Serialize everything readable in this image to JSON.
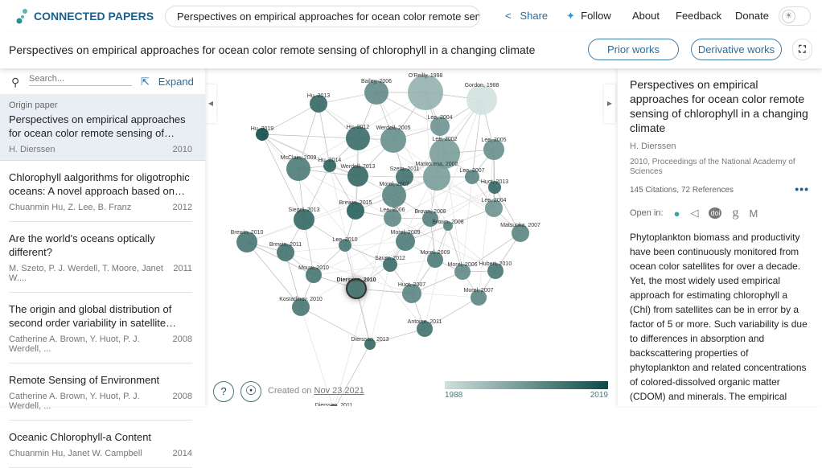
{
  "header": {
    "logo": "CONNECTED PAPERS",
    "search_value": "Perspectives on empirical approaches for ocean color remote sensing of chlorophyll in a changing climate",
    "share": "Share",
    "follow": "Follow",
    "about": "About",
    "feedback": "Feedback",
    "donate": "Donate"
  },
  "titlebar": {
    "title": "Perspectives on empirical approaches for ocean color remote sensing of chlorophyll in a changing climate",
    "prior": "Prior works",
    "derivative": "Derivative works"
  },
  "list": {
    "search_placeholder": "Search...",
    "expand": "Expand",
    "origin_label": "Origin paper",
    "origin": {
      "title": "Perspectives on empirical approaches for ocean color remote sensing of chlorophyll in a changing climate",
      "authors": "H. Dierssen",
      "year": "2010"
    },
    "items": [
      {
        "title": "Chlorophyll aalgorithms for oligotrophic oceans: A novel approach based on three-band reflectance difference",
        "authors": "Chuanmin Hu, Z. Lee, B. Franz",
        "year": "2012"
      },
      {
        "title": "Are the world's oceans optically different?",
        "authors": "M. Szeto, P. J. Werdell, T. Moore, Janet W....",
        "year": "2011"
      },
      {
        "title": "The origin and global distribution of second order variability in satellite ocean color",
        "authors": "Catherine A. Brown, Y. Huot, P. J. Werdell, ...",
        "year": "2008"
      },
      {
        "title": "Remote Sensing of Environment",
        "authors": "Catherine A. Brown, Y. Huot, P. J. Werdell, ...",
        "year": "2008"
      },
      {
        "title": "Oceanic Chlorophyll-a Content",
        "authors": "Chuanmin Hu, Janet W. Campbell",
        "year": "2014"
      }
    ]
  },
  "graph": {
    "created_prefix": "Created on",
    "created_date": "Nov 23 2021",
    "legend_min": "1988",
    "legend_max": "2019",
    "color_min": "#d2e2df",
    "color_max": "#0e4a47",
    "nodes": [
      {
        "label": "Bailey, 2006",
        "year": 2006
      },
      {
        "label": "O'Reilly, 1998",
        "year": 1998
      },
      {
        "label": "Gordon, 1988",
        "year": 1988
      },
      {
        "label": "Hu, 2013",
        "year": 2013
      },
      {
        "label": "Lee, 2004",
        "year": 2004
      },
      {
        "label": "Hu, 2019",
        "year": 2019
      },
      {
        "label": "Hu, 2012",
        "year": 2012
      },
      {
        "label": "Werdell, 2005",
        "year": 2005
      },
      {
        "label": "Lee, 2002",
        "year": 2002
      },
      {
        "label": "Lee, 2005",
        "year": 2005
      },
      {
        "label": "McClain, 2009",
        "year": 2009
      },
      {
        "label": "Hu, 2014",
        "year": 2014
      },
      {
        "label": "Werdell, 2013",
        "year": 2013
      },
      {
        "label": "Szeto, 2011",
        "year": 2011
      },
      {
        "label": "Maritorena, 2002",
        "year": 2002
      },
      {
        "label": "Lee, 2007",
        "year": 2007
      },
      {
        "label": "Huot, 2013",
        "year": 2013
      },
      {
        "label": "Morel, 2007",
        "year": 2007
      },
      {
        "label": "Brewin, 2015",
        "year": 2015
      },
      {
        "label": "Lee, 2004",
        "year": 2004
      },
      {
        "label": "Siegel, 2013",
        "year": 2013
      },
      {
        "label": "Lee, 2006",
        "year": 2006
      },
      {
        "label": "Brown, 2008",
        "year": 2008
      },
      {
        "label": "Brown, 2008",
        "year": 2008
      },
      {
        "label": "Matsuoka, 2007",
        "year": 2007
      },
      {
        "label": "Brewin, 2010",
        "year": 2010
      },
      {
        "label": "Lee, 2010",
        "year": 2010
      },
      {
        "label": "Morel, 2009",
        "year": 2009
      },
      {
        "label": "Brewin, 2011",
        "year": 2011
      },
      {
        "label": "Morel, 2009",
        "year": 2009
      },
      {
        "label": "Sauer, 2012",
        "year": 2012
      },
      {
        "label": "Morel, 2006",
        "year": 2006
      },
      {
        "label": "Hubert, 2010",
        "year": 2010
      },
      {
        "label": "Mouw, 2010",
        "year": 2010
      },
      {
        "label": "Dierssen, 2010",
        "year": 2010
      },
      {
        "label": "Huot, 2007",
        "year": 2007
      },
      {
        "label": "Morel, 2007",
        "year": 2007
      },
      {
        "label": "Kostadinov, 2010",
        "year": 2010
      },
      {
        "label": "Antoine, 2011",
        "year": 2011
      },
      {
        "label": "Dierssen, 2013",
        "year": 2013
      },
      {
        "label": "Dierssen, 2011",
        "year": 2011
      }
    ]
  },
  "detail": {
    "title": "Perspectives on empirical approaches for ocean color remote sensing of chlorophyll in a changing climate",
    "authors": "H. Dierssen",
    "venue": "2010, Proceedings of the National Academy of Sciences",
    "stats": "145 Citations, 72 References",
    "open_in": "Open in:",
    "abstract": "Phytoplankton biomass and productivity have been continuously monitored from ocean color satellites for over a decade. Yet, the most widely used empirical approach for estimating chlorophyll a (Chl) from satellites can be in error by a factor of 5 or more. Such variability is due to differences in absorption and backscattering properties of phytoplankton and related concentrations of colored-dissolved organic matter (CDOM) and minerals. The empirical algorithms have built-in assumptions that"
  }
}
